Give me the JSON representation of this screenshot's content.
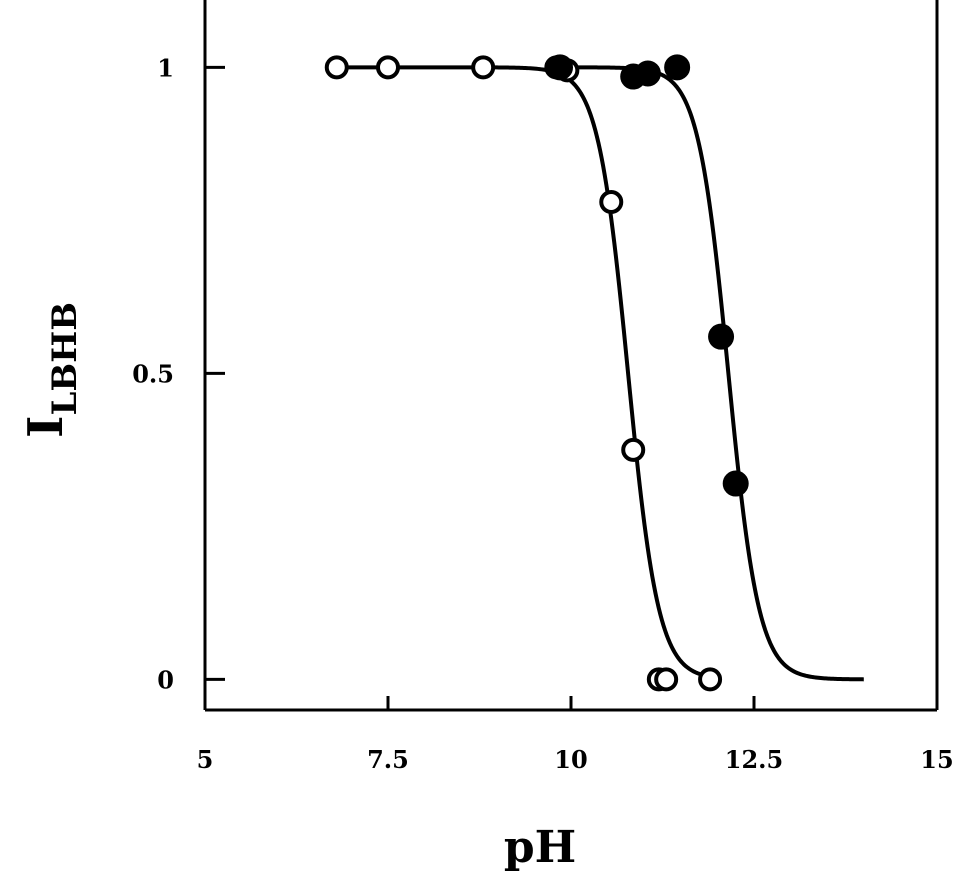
{
  "chart_data": {
    "type": "scatter",
    "xlabel": "pH",
    "ylabel_main": "I",
    "ylabel_sub": "LBHB",
    "xlim": [
      5,
      15
    ],
    "ylim": [
      -0.05,
      1.11
    ],
    "xticks": [
      5,
      7.5,
      10,
      12.5,
      15
    ],
    "xtick_labels": [
      "5",
      "7.5",
      "10",
      "12.5",
      "15"
    ],
    "yticks": [
      0,
      0.5,
      1
    ],
    "ytick_labels": [
      "0",
      "0.5",
      "1"
    ],
    "grid": false,
    "legend": "none",
    "series": [
      {
        "marker": "open-circle",
        "color": "#000000",
        "points": [
          {
            "x": 6.8,
            "y": 1.0
          },
          {
            "x": 7.5,
            "y": 1.0
          },
          {
            "x": 8.8,
            "y": 1.0
          },
          {
            "x": 9.8,
            "y": 1.0
          },
          {
            "x": 9.95,
            "y": 0.995
          },
          {
            "x": 10.55,
            "y": 0.78
          },
          {
            "x": 10.85,
            "y": 0.375
          },
          {
            "x": 11.2,
            "y": 0.0
          },
          {
            "x": 11.3,
            "y": 0.0
          },
          {
            "x": 11.9,
            "y": 0.0
          }
        ],
        "fit": {
          "pKa": 10.78,
          "n": 2.1,
          "x_start": 6.8,
          "x_end": 12.0
        }
      },
      {
        "marker": "filled-circle",
        "color": "#000000",
        "points": [
          {
            "x": 9.85,
            "y": 1.0
          },
          {
            "x": 10.85,
            "y": 0.985
          },
          {
            "x": 11.05,
            "y": 0.99
          },
          {
            "x": 11.45,
            "y": 1.0
          },
          {
            "x": 12.05,
            "y": 0.56
          },
          {
            "x": 12.25,
            "y": 0.32
          }
        ],
        "fit": {
          "pKa": 12.15,
          "n": 2.1,
          "x_start": 9.85,
          "x_end": 14.0
        }
      }
    ]
  }
}
